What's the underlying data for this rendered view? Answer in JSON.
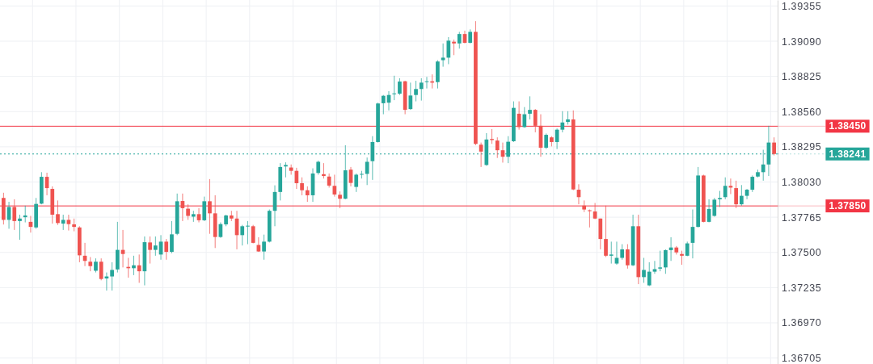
{
  "chart_data": {
    "type": "candlestick",
    "categories": [
      null,
      null,
      null,
      null,
      null,
      null,
      null,
      null,
      null,
      null,
      null,
      null,
      null,
      null,
      null,
      null,
      null,
      null,
      null,
      null,
      null,
      null,
      null,
      null,
      null,
      null,
      null,
      null,
      null,
      null,
      null,
      null,
      null,
      null,
      null,
      null,
      null,
      null,
      null,
      null,
      null,
      null,
      null,
      null,
      null,
      null,
      null,
      null,
      null,
      null,
      null,
      null,
      null,
      null,
      null,
      null,
      null,
      null,
      null,
      null,
      null,
      null,
      null,
      null,
      null,
      null,
      null,
      null,
      null,
      null,
      null,
      null,
      null,
      null,
      null,
      null,
      null,
      null,
      null,
      null,
      null,
      null,
      null,
      null,
      null,
      null,
      null,
      null,
      null,
      null,
      null,
      null,
      null,
      null,
      null,
      null,
      null,
      null,
      null,
      null,
      null,
      null,
      null,
      null,
      null,
      null,
      null,
      null,
      null,
      null,
      null,
      null,
      null,
      null,
      null,
      null,
      null,
      null,
      null,
      null,
      null,
      null,
      null,
      null,
      null,
      null,
      null,
      null,
      null,
      null,
      null,
      null,
      null,
      null,
      null,
      null,
      null,
      null,
      null,
      null,
      null,
      null,
      null
    ],
    "ohlc": [
      [
        1.3791,
        1.37949,
        1.3771,
        1.37745
      ],
      [
        1.37745,
        1.37881,
        1.37678,
        1.37842
      ],
      [
        1.37842,
        1.379,
        1.37669,
        1.37736
      ],
      [
        1.37736,
        1.37784,
        1.37595,
        1.37755
      ],
      [
        1.37765,
        1.37852,
        1.37726,
        1.37778
      ],
      [
        1.3773,
        1.37775,
        1.37649,
        1.37692
      ],
      [
        1.37688,
        1.3791,
        1.37678,
        1.37865
      ],
      [
        1.37867,
        1.38104,
        1.37862,
        1.38069
      ],
      [
        1.38069,
        1.381,
        1.3793,
        1.37984
      ],
      [
        1.37978,
        1.37997,
        1.37717,
        1.37784
      ],
      [
        1.37788,
        1.37891,
        1.37707,
        1.37721
      ],
      [
        1.37717,
        1.37784,
        1.37669,
        1.37745
      ],
      [
        1.37745,
        1.37784,
        1.37665,
        1.37713
      ],
      [
        1.37711,
        1.37755,
        1.37659,
        1.37692
      ],
      [
        1.37688,
        1.37697,
        1.37426,
        1.37478
      ],
      [
        1.37475,
        1.37572,
        1.37397,
        1.37436
      ],
      [
        1.3743,
        1.37465,
        1.37358,
        1.37397
      ],
      [
        1.37362,
        1.37455,
        1.37349,
        1.3743
      ],
      [
        1.3743,
        1.37455,
        1.3729,
        1.373
      ],
      [
        1.37304,
        1.37349,
        1.37213,
        1.37319
      ],
      [
        1.37319,
        1.37426,
        1.37213,
        1.37368
      ],
      [
        1.37372,
        1.3773,
        1.37349,
        1.37519
      ],
      [
        1.37519,
        1.37669,
        1.37387,
        1.37488
      ],
      [
        1.37391,
        1.37459,
        1.3731,
        1.37381
      ],
      [
        1.37381,
        1.37475,
        1.37329,
        1.37403
      ],
      [
        1.37403,
        1.37484,
        1.37271,
        1.37358
      ],
      [
        1.37358,
        1.3762,
        1.37252,
        1.37577
      ],
      [
        1.37575,
        1.3762,
        1.37416,
        1.37519
      ],
      [
        1.37519,
        1.3762,
        1.37475,
        1.37552
      ],
      [
        1.37484,
        1.3763,
        1.37445,
        1.37581
      ],
      [
        1.37581,
        1.37601,
        1.37445,
        1.37504
      ],
      [
        1.37504,
        1.37736,
        1.37494,
        1.37636
      ],
      [
        1.3764,
        1.37943,
        1.3763,
        1.37885
      ],
      [
        1.37887,
        1.37943,
        1.37736,
        1.37833
      ],
      [
        1.37829,
        1.37862,
        1.37745,
        1.37775
      ],
      [
        1.37769,
        1.37813,
        1.3773,
        1.37788
      ],
      [
        1.37788,
        1.37833,
        1.37726,
        1.37742
      ],
      [
        1.37742,
        1.3792,
        1.37736,
        1.37885
      ],
      [
        1.37885,
        1.38052,
        1.3764,
        1.37794
      ],
      [
        1.37794,
        1.3793,
        1.37533,
        1.37616
      ],
      [
        1.37616,
        1.37726,
        1.3761,
        1.37713
      ],
      [
        1.37711,
        1.37784,
        1.37697,
        1.37778
      ],
      [
        1.37778,
        1.37813,
        1.37736,
        1.37755
      ],
      [
        1.37755,
        1.37813,
        1.37523,
        1.3763
      ],
      [
        1.3763,
        1.37707,
        1.37552,
        1.37697
      ],
      [
        1.37697,
        1.37736,
        1.37562,
        1.37701
      ],
      [
        1.37697,
        1.37707,
        1.37568,
        1.37572
      ],
      [
        1.37556,
        1.37614,
        1.37504,
        1.37507
      ],
      [
        1.37507,
        1.37634,
        1.37445,
        1.37581
      ],
      [
        1.37581,
        1.37823,
        1.37575,
        1.37813
      ],
      [
        1.37813,
        1.38005,
        1.37697,
        1.37955
      ],
      [
        1.37955,
        1.38172,
        1.37891,
        1.38143
      ],
      [
        1.38147,
        1.38178,
        1.38065,
        1.38158
      ],
      [
        1.38139,
        1.38162,
        1.38085,
        1.38114
      ],
      [
        1.38114,
        1.38137,
        1.37978,
        1.38021
      ],
      [
        1.38021,
        1.38065,
        1.3793,
        1.37968
      ],
      [
        1.37968,
        1.37997,
        1.37881,
        1.3793
      ],
      [
        1.3793,
        1.38133,
        1.37881,
        1.38094
      ],
      [
        1.38098,
        1.38191,
        1.38085,
        1.38182
      ],
      [
        1.38089,
        1.38172,
        1.38056,
        1.38075
      ],
      [
        1.38071,
        1.38094,
        1.37988,
        1.38003
      ],
      [
        1.38001,
        1.38085,
        1.3792,
        1.37936
      ],
      [
        1.37934,
        1.37959,
        1.37833,
        1.37904
      ],
      [
        1.37904,
        1.38307,
        1.379,
        1.38118
      ],
      [
        1.38123,
        1.38143,
        1.37997,
        1.38023
      ],
      [
        1.37993,
        1.38094,
        1.37955,
        1.38085
      ],
      [
        1.38085,
        1.38114,
        1.38056,
        1.38091
      ],
      [
        1.38091,
        1.38214,
        1.38007,
        1.38182
      ],
      [
        1.38187,
        1.38375,
        1.38046,
        1.38331
      ],
      [
        1.38331,
        1.38627,
        1.38327,
        1.38621
      ],
      [
        1.38623,
        1.38685,
        1.3854,
        1.38679
      ],
      [
        1.38627,
        1.38714,
        1.38569,
        1.38685
      ],
      [
        1.38691,
        1.3883,
        1.38646,
        1.38697
      ],
      [
        1.38695,
        1.38811,
        1.38685,
        1.38786
      ],
      [
        1.38788,
        1.38792,
        1.3854,
        1.38573
      ],
      [
        1.38579,
        1.38778,
        1.38573,
        1.38681
      ],
      [
        1.38685,
        1.38792,
        1.38637,
        1.3873
      ],
      [
        1.3873,
        1.38811,
        1.38643,
        1.38778
      ],
      [
        1.38782,
        1.38821,
        1.38734,
        1.38788
      ],
      [
        1.38788,
        1.3884,
        1.38734,
        1.38778
      ],
      [
        1.38782,
        1.38947,
        1.38734,
        1.38937
      ],
      [
        1.38947,
        1.39073,
        1.38898,
        1.38966
      ],
      [
        1.38966,
        1.39121,
        1.38917,
        1.39094
      ],
      [
        1.39086,
        1.39102,
        1.38985,
        1.39073
      ],
      [
        1.39073,
        1.3916,
        1.39034,
        1.39144
      ],
      [
        1.39144,
        1.39169,
        1.39073,
        1.39078
      ],
      [
        1.39078,
        1.39179,
        1.39073,
        1.3916
      ],
      [
        1.3916,
        1.39241,
        1.38307,
        1.38317
      ],
      [
        1.38311,
        1.38327,
        1.38143,
        1.38259
      ],
      [
        1.38158,
        1.38398,
        1.38152,
        1.3835
      ],
      [
        1.38354,
        1.38428,
        1.38317,
        1.38346
      ],
      [
        1.38342,
        1.38366,
        1.38211,
        1.38269
      ],
      [
        1.38269,
        1.38327,
        1.38176,
        1.3822
      ],
      [
        1.3822,
        1.38375,
        1.38172,
        1.38333
      ],
      [
        1.38337,
        1.38637,
        1.38331,
        1.38588
      ],
      [
        1.38544,
        1.38637,
        1.38424,
        1.38443
      ],
      [
        1.38443,
        1.38594,
        1.38439,
        1.3854
      ],
      [
        1.38544,
        1.38675,
        1.38501,
        1.38573
      ],
      [
        1.38573,
        1.38579,
        1.38404,
        1.38453
      ],
      [
        1.38453,
        1.3854,
        1.3822,
        1.38288
      ],
      [
        1.38288,
        1.38395,
        1.38278,
        1.38385
      ],
      [
        1.38366,
        1.38375,
        1.38298,
        1.38331
      ],
      [
        1.38331,
        1.38433,
        1.38278,
        1.38424
      ],
      [
        1.38424,
        1.38563,
        1.38404,
        1.38478
      ],
      [
        1.38482,
        1.38563,
        1.38462,
        1.38501
      ],
      [
        1.38501,
        1.38569,
        1.37968,
        1.37974
      ],
      [
        1.37972,
        1.38013,
        1.37862,
        1.37916
      ],
      [
        1.37852,
        1.37891,
        1.37804,
        1.37823
      ],
      [
        1.37817,
        1.37823,
        1.37688,
        1.37813
      ],
      [
        1.37808,
        1.37872,
        1.3775,
        1.37755
      ],
      [
        1.37755,
        1.37755,
        1.37523,
        1.37601
      ],
      [
        1.37601,
        1.37852,
        1.37465,
        1.37475
      ],
      [
        1.37475,
        1.37581,
        1.37416,
        1.37484
      ],
      [
        1.37416,
        1.37581,
        1.37407,
        1.37459
      ],
      [
        1.37459,
        1.37562,
        1.37445,
        1.37523
      ],
      [
        1.37523,
        1.37562,
        1.37378,
        1.37403
      ],
      [
        1.37403,
        1.37784,
        1.37397,
        1.37697
      ],
      [
        1.37697,
        1.37784,
        1.37261,
        1.37314
      ],
      [
        1.37314,
        1.37459,
        1.37271,
        1.37368
      ],
      [
        1.37252,
        1.37426,
        1.37246,
        1.37355
      ],
      [
        1.37355,
        1.37436,
        1.37339,
        1.37374
      ],
      [
        1.37378,
        1.37513,
        1.37358,
        1.37387
      ],
      [
        1.37387,
        1.37523,
        1.37339,
        1.37517
      ],
      [
        1.37517,
        1.37614,
        1.37436,
        1.37537
      ],
      [
        1.37537,
        1.37548,
        1.37484,
        1.375
      ],
      [
        1.37488,
        1.37513,
        1.37407,
        1.37475
      ],
      [
        1.37475,
        1.37581,
        1.37471,
        1.37568
      ],
      [
        1.37572,
        1.37823,
        1.37455,
        1.37692
      ],
      [
        1.37692,
        1.38143,
        1.37688,
        1.38079
      ],
      [
        1.38079,
        1.38085,
        1.37726,
        1.3773
      ],
      [
        1.3773,
        1.379,
        1.37726,
        1.37827
      ],
      [
        1.37775,
        1.3791,
        1.37769,
        1.37897
      ],
      [
        1.379,
        1.37963,
        1.37842,
        1.3791
      ],
      [
        1.37916,
        1.38065,
        1.379,
        1.38001
      ],
      [
        1.38001,
        1.38056,
        1.37939,
        1.37988
      ],
      [
        1.37984,
        1.3804,
        1.37833,
        1.37862
      ],
      [
        1.37862,
        1.38007,
        1.37852,
        1.37926
      ],
      [
        1.37926,
        1.37978,
        1.379,
        1.37972
      ],
      [
        1.37972,
        1.38079,
        1.37955,
        1.38069
      ],
      [
        1.38071,
        1.38123,
        1.38065,
        1.38104
      ],
      [
        1.38104,
        1.38273,
        1.3804,
        1.38162
      ],
      [
        1.38162,
        1.38453,
        1.38075,
        1.38327
      ],
      [
        1.38327,
        1.38366,
        1.3823,
        1.38241
      ]
    ],
    "colors": [
      "#ef5350",
      "#26a69a",
      "#ef5350",
      "#26a69a",
      "#26a69a",
      "#ef5350",
      "#26a69a",
      "#26a69a",
      "#ef5350",
      "#ef5350",
      "#ef5350",
      "#26a69a",
      "#ef5350",
      "#ef5350",
      "#ef5350",
      "#ef5350",
      "#ef5350",
      "#26a69a",
      "#ef5350",
      "#26a69a",
      "#26a69a",
      "#26a69a",
      "#ef5350",
      "#ef5350",
      "#26a69a",
      "#ef5350",
      "#26a69a",
      "#ef5350",
      "#26a69a",
      "#26a69a",
      "#ef5350",
      "#26a69a",
      "#26a69a",
      "#ef5350",
      "#ef5350",
      "#26a69a",
      "#ef5350",
      "#26a69a",
      "#ef5350",
      "#ef5350",
      "#26a69a",
      "#26a69a",
      "#ef5350",
      "#ef5350",
      "#26a69a",
      "#26a69a",
      "#ef5350",
      "#ef5350",
      "#26a69a",
      "#26a69a",
      "#26a69a",
      "#26a69a",
      "#26a69a",
      "#ef5350",
      "#ef5350",
      "#ef5350",
      "#ef5350",
      "#26a69a",
      "#26a69a",
      "#ef5350",
      "#ef5350",
      "#ef5350",
      "#ef5350",
      "#26a69a",
      "#ef5350",
      "#26a69a",
      "#26a69a",
      "#26a69a",
      "#26a69a",
      "#26a69a",
      "#26a69a",
      "#26a69a",
      "#26a69a",
      "#26a69a",
      "#ef5350",
      "#26a69a",
      "#26a69a",
      "#26a69a",
      "#26a69a",
      "#ef5350",
      "#26a69a",
      "#26a69a",
      "#26a69a",
      "#ef5350",
      "#26a69a",
      "#ef5350",
      "#26a69a",
      "#ef5350",
      "#ef5350",
      "#26a69a",
      "#ef5350",
      "#ef5350",
      "#ef5350",
      "#26a69a",
      "#26a69a",
      "#ef5350",
      "#26a69a",
      "#26a69a",
      "#ef5350",
      "#ef5350",
      "#26a69a",
      "#ef5350",
      "#26a69a",
      "#26a69a",
      "#26a69a",
      "#ef5350",
      "#ef5350",
      "#ef5350",
      "#ef5350",
      "#ef5350",
      "#ef5350",
      "#ef5350",
      "#26a69a",
      "#26a69a",
      "#26a69a",
      "#ef5350",
      "#26a69a",
      "#ef5350",
      "#26a69a",
      "#26a69a",
      "#26a69a",
      "#26a69a",
      "#26a69a",
      "#26a69a",
      "#ef5350",
      "#ef5350",
      "#26a69a",
      "#26a69a",
      "#26a69a",
      "#ef5350",
      "#26a69a",
      "#26a69a",
      "#26a69a",
      "#26a69a",
      "#ef5350",
      "#ef5350",
      "#26a69a",
      "#26a69a",
      "#26a69a",
      "#26a69a",
      "#26a69a",
      "#26a69a",
      "#ef5350"
    ],
    "ylim": [
      1.3666,
      1.394
    ],
    "yticks": [
      1.36705,
      {
        "value": 1.3697,
        "label": "1.36970"
      },
      1.37235,
      {
        "value": 1.375,
        "label": "1.37500"
      },
      1.37765,
      {
        "value": 1.3803,
        "label": "1.38030"
      },
      1.38295,
      {
        "value": 1.3856,
        "label": "1.38560"
      },
      1.38825,
      {
        "value": 1.3909,
        "label": "1.39090"
      },
      1.39355
    ],
    "ref_lines": [
      {
        "axis": "y",
        "value": 1.3845,
        "label": "1.38450",
        "color": "#f23645"
      },
      {
        "axis": "y",
        "value": 1.3785,
        "label": "1.37850",
        "color": "#f23645"
      },
      {
        "axis": "y",
        "value": 1.38241,
        "label": "1.38241",
        "color": "#26a69a",
        "line_style": "dotted"
      }
    ],
    "grid": true,
    "tick_labels": "y"
  }
}
